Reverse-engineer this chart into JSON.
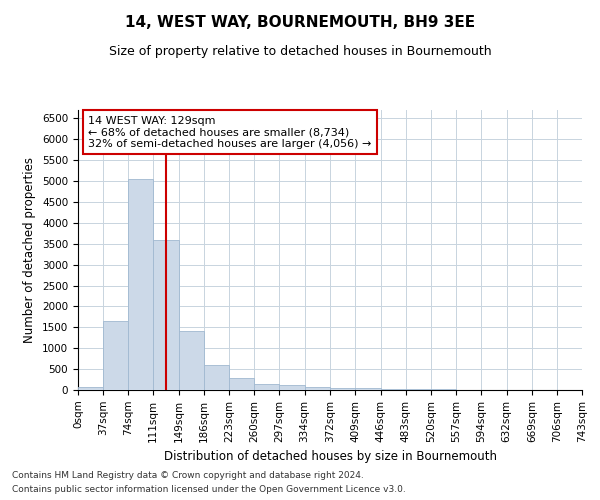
{
  "title": "14, WEST WAY, BOURNEMOUTH, BH9 3EE",
  "subtitle": "Size of property relative to detached houses in Bournemouth",
  "xlabel": "Distribution of detached houses by size in Bournemouth",
  "ylabel": "Number of detached properties",
  "bar_color": "#ccd9e8",
  "bar_edgecolor": "#a0b8d0",
  "vline_x": 129,
  "vline_color": "#cc0000",
  "annotation_title": "14 WEST WAY: 129sqm",
  "annotation_line2": "← 68% of detached houses are smaller (8,734)",
  "annotation_line3": "32% of semi-detached houses are larger (4,056) →",
  "bin_edges": [
    0,
    37,
    74,
    111,
    149,
    186,
    223,
    260,
    297,
    334,
    372,
    409,
    446,
    483,
    520,
    557,
    594,
    632,
    669,
    706,
    743
  ],
  "bar_heights": [
    70,
    1650,
    5060,
    3590,
    1420,
    610,
    295,
    140,
    110,
    70,
    55,
    50,
    35,
    20,
    15,
    10,
    8,
    5,
    5,
    5
  ],
  "ylim": [
    0,
    6700
  ],
  "yticks": [
    0,
    500,
    1000,
    1500,
    2000,
    2500,
    3000,
    3500,
    4000,
    4500,
    5000,
    5500,
    6000,
    6500
  ],
  "footer_line1": "Contains HM Land Registry data © Crown copyright and database right 2024.",
  "footer_line2": "Contains public sector information licensed under the Open Government Licence v3.0.",
  "background_color": "#ffffff",
  "plot_bg_color": "#ffffff",
  "grid_color": "#c8d4df"
}
